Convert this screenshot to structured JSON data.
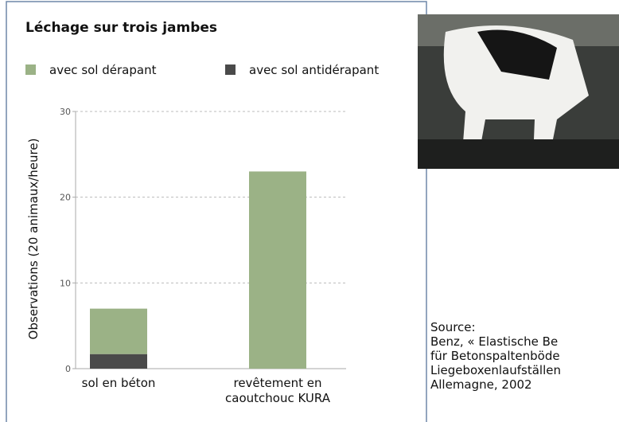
{
  "chart_data": {
    "type": "bar",
    "stacked": true,
    "title": "Léchage sur trois jambes",
    "y_label": "Observations (20 animaux/heure)",
    "categories": [
      "sol en béton",
      "revêtement en caoutchouc KURA"
    ],
    "series": [
      {
        "name": "avec sol antidérapant",
        "color": "#4a4a4a",
        "values": [
          1.7,
          0
        ]
      },
      {
        "name": "avec sol dérapant",
        "color": "#9bb286",
        "values": [
          5.3,
          23
        ]
      }
    ],
    "legend_order": [
      1,
      0
    ],
    "ylim": [
      0,
      30
    ],
    "yticks": [
      0,
      10,
      20,
      30
    ],
    "grid": true
  },
  "source": {
    "label": "Source:",
    "lines": [
      "Benz, « Elastische Be",
      "für Betonspaltenböde",
      "Liegeboxenlaufställen",
      "Allemagne, 2002"
    ]
  }
}
